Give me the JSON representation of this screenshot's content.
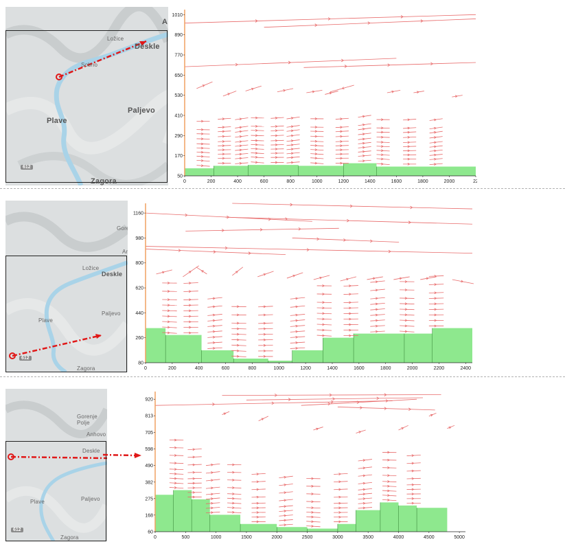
{
  "map_labels": {
    "p1": {
      "deskle": "Deskle",
      "lozice": "Ložice",
      "plave": "Plave",
      "paljevo": "Paljevo",
      "zagora": "Zagora",
      "road": "612",
      "sobno": "Sobno",
      "corner": "A"
    },
    "p2": {
      "deskle": "Deskle",
      "lozice": "Ložice",
      "plave": "Plave",
      "paljevo": "Paljevo",
      "zagora": "Zagora",
      "road": "612",
      "gorenje": "Gore",
      "anhovo": "An"
    },
    "p3": {
      "deskle": "Deskle",
      "plave": "Plave",
      "paljevo": "Paljevo",
      "zagora": "Zagora",
      "road": "612",
      "gorenje": "Gorenje Polje",
      "anhovo": "Anhovo"
    }
  },
  "colors": {
    "terrain": "#8ee88e",
    "vector": "#e86a6a",
    "river": "#a9d3e8",
    "section_line": "#e01818",
    "axis_frame": "#f0a060"
  },
  "chart_data": [
    {
      "type": "vector-field",
      "y_ticks": [
        "1010",
        "890",
        "770",
        "650",
        "530",
        "410",
        "290",
        "170",
        "50"
      ],
      "x_ticks": [
        "0",
        "200",
        "400",
        "600",
        "800",
        "1000",
        "1200",
        "1400",
        "1600",
        "1800",
        "2000",
        "22"
      ],
      "xlim": [
        0,
        2200
      ],
      "ylim": [
        50,
        1040
      ],
      "terrain_steps": [
        [
          0,
          95
        ],
        [
          220,
          110
        ],
        [
          480,
          115
        ],
        [
          860,
          110
        ],
        [
          1200,
          125
        ],
        [
          1450,
          105
        ],
        [
          2200,
          105
        ]
      ],
      "streams": [
        {
          "x0": 0,
          "y0": 960,
          "x1": 2200,
          "y1": 1010
        },
        {
          "x0": 600,
          "y0": 935,
          "x1": 2200,
          "y1": 985
        },
        {
          "x0": 0,
          "y0": 700,
          "x1": 1600,
          "y1": 750
        },
        {
          "x0": 900,
          "y0": 695,
          "x1": 2200,
          "y1": 725
        }
      ],
      "cols": [
        140,
        300,
        430,
        550,
        700,
        820,
        1000,
        1190,
        1360,
        1500,
        1700,
        1900
      ],
      "rows": [
        130,
        160,
        185,
        210,
        235,
        260,
        290,
        320,
        345,
        395
      ],
      "arrows_top": [
        [
          90,
          570,
          60,
          40
        ],
        [
          290,
          525,
          50,
          30
        ],
        [
          460,
          555,
          60,
          30
        ],
        [
          700,
          550,
          60,
          20
        ],
        [
          920,
          545,
          60,
          15
        ],
        [
          1060,
          535,
          50,
          20
        ],
        [
          1280,
          590,
          -90,
          -40
        ],
        [
          1530,
          545,
          50,
          15
        ],
        [
          1730,
          545,
          40,
          10
        ],
        [
          2020,
          520,
          40,
          10
        ]
      ]
    },
    {
      "type": "vector-field",
      "y_ticks": [
        "1160",
        "980",
        "800",
        "620",
        "440",
        "260",
        "80"
      ],
      "x_ticks": [
        "0",
        "200",
        "400",
        "600",
        "800",
        "1000",
        "1200",
        "1400",
        "1600",
        "1800",
        "2000",
        "2200",
        "2400"
      ],
      "xlim": [
        0,
        2450
      ],
      "ylim": [
        80,
        1230
      ],
      "terrain_steps": [
        [
          0,
          330
        ],
        [
          150,
          280
        ],
        [
          420,
          170
        ],
        [
          660,
          110
        ],
        [
          920,
          95
        ],
        [
          1100,
          170
        ],
        [
          1330,
          260
        ],
        [
          1560,
          290
        ],
        [
          1940,
          290
        ],
        [
          2150,
          330
        ],
        [
          2450,
          330
        ]
      ],
      "streams": [
        {
          "x0": 650,
          "y0": 1230,
          "x1": 2450,
          "y1": 1190
        },
        {
          "x0": 0,
          "y0": 1160,
          "x1": 1250,
          "y1": 1100
        },
        {
          "x0": 600,
          "y0": 1130,
          "x1": 2450,
          "y1": 1080
        },
        {
          "x0": 300,
          "y0": 1030,
          "x1": 1450,
          "y1": 1050
        },
        {
          "x0": 0,
          "y0": 920,
          "x1": 2450,
          "y1": 870
        },
        {
          "x0": 0,
          "y0": 900,
          "x1": 1050,
          "y1": 860
        },
        {
          "x0": 1100,
          "y0": 980,
          "x1": 1900,
          "y1": 950
        }
      ],
      "cols": [
        180,
        340,
        520,
        700,
        900,
        1140,
        1340,
        1540,
        1740,
        1960,
        2180
      ],
      "rows": [
        280,
        320,
        360,
        400,
        440,
        480,
        520,
        580,
        640
      ],
      "arrows_top": [
        [
          80,
          720,
          60,
          30
        ],
        [
          280,
          700,
          60,
          80
        ],
        [
          460,
          720,
          -40,
          50
        ],
        [
          650,
          710,
          40,
          60
        ],
        [
          840,
          700,
          60,
          40
        ],
        [
          1060,
          690,
          60,
          40
        ],
        [
          1260,
          680,
          60,
          30
        ],
        [
          1460,
          670,
          60,
          30
        ],
        [
          1660,
          680,
          60,
          20
        ],
        [
          1860,
          680,
          60,
          20
        ],
        [
          2060,
          680,
          60,
          20
        ],
        [
          2300,
          680,
          80,
          -30
        ]
      ]
    },
    {
      "type": "vector-field",
      "y_ticks": [
        "920",
        "813",
        "705",
        "598",
        "490",
        "382",
        "275",
        "168",
        "60"
      ],
      "x_ticks": [
        "0",
        "500",
        "1000",
        "1500",
        "2000",
        "2500",
        "3000",
        "3500",
        "4000",
        "4500",
        "5000"
      ],
      "xlim": [
        0,
        5100
      ],
      "ylim": [
        60,
        970
      ],
      "terrain_steps": [
        [
          0,
          300
        ],
        [
          300,
          330
        ],
        [
          600,
          270
        ],
        [
          900,
          170
        ],
        [
          1400,
          110
        ],
        [
          2000,
          90
        ],
        [
          2500,
          80
        ],
        [
          3000,
          110
        ],
        [
          3300,
          200
        ],
        [
          3700,
          250
        ],
        [
          4000,
          230
        ],
        [
          4300,
          215
        ],
        [
          4800,
          215
        ]
      ],
      "streams": [
        {
          "x0": 1100,
          "y0": 945,
          "x1": 4700,
          "y1": 950
        },
        {
          "x0": 0,
          "y0": 880,
          "x1": 3900,
          "y1": 910
        },
        {
          "x0": 1500,
          "y0": 915,
          "x1": 4400,
          "y1": 930
        },
        {
          "x0": 2400,
          "y0": 880,
          "x1": 4300,
          "y1": 920
        },
        {
          "x0": 3000,
          "y0": 870,
          "x1": 4600,
          "y1": 850
        }
      ],
      "cols": [
        350,
        650,
        950,
        1300,
        1700,
        2150,
        2600,
        3050,
        3450,
        3850,
        4250
      ],
      "rows": [
        170,
        200,
        230,
        260,
        290,
        330,
        380,
        430,
        480
      ],
      "arrows_top": [
        [
          0,
          720,
          0,
          0
        ],
        [
          1100,
          820,
          60,
          20
        ],
        [
          1700,
          780,
          80,
          30
        ],
        [
          2600,
          720,
          80,
          20
        ],
        [
          3300,
          700,
          80,
          20
        ],
        [
          4000,
          720,
          80,
          30
        ],
        [
          4500,
          810,
          60,
          20
        ],
        [
          4800,
          730,
          60,
          20
        ]
      ]
    }
  ]
}
